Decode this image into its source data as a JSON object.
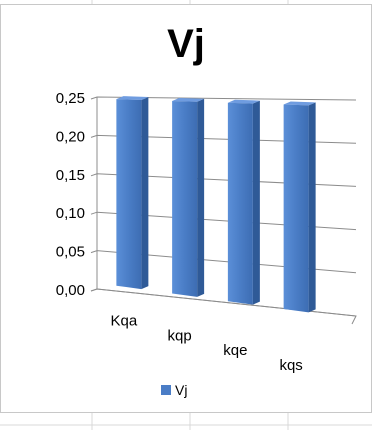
{
  "chart_data": {
    "type": "bar",
    "title": "Vj",
    "categories": [
      "Kqa",
      "kqp",
      "kqe",
      "kqs"
    ],
    "series": [
      {
        "name": "Vj",
        "values": [
          0.235,
          0.235,
          0.235,
          0.235
        ]
      }
    ],
    "y_ticks": [
      "0,00",
      "0,05",
      "0,10",
      "0,15",
      "0,20",
      "0,25"
    ],
    "ylim": [
      0,
      0.25
    ],
    "legend_position": "bottom",
    "grid": true,
    "bar_color": "#4a7dc6",
    "style": "3d-column"
  }
}
